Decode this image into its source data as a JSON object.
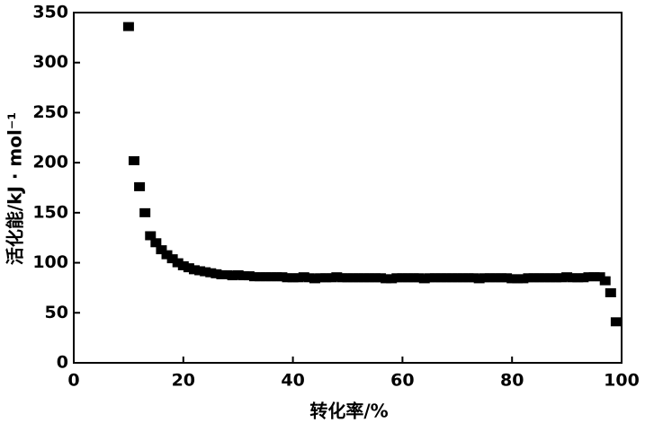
{
  "chart_data": {
    "type": "scatter",
    "x_label": "转化率/%",
    "y_label": "活化能/kJ · mol⁻¹",
    "x": [
      10,
      11,
      12,
      13,
      14,
      15,
      16,
      17,
      18,
      19,
      20,
      21,
      22,
      23,
      24,
      25,
      26,
      27,
      28,
      29,
      30,
      31,
      32,
      33,
      34,
      35,
      36,
      37,
      38,
      39,
      40,
      41,
      42,
      43,
      44,
      45,
      46,
      47,
      48,
      49,
      50,
      51,
      52,
      53,
      54,
      55,
      56,
      57,
      58,
      59,
      60,
      61,
      62,
      63,
      64,
      65,
      66,
      67,
      68,
      69,
      70,
      71,
      72,
      73,
      74,
      75,
      76,
      77,
      78,
      79,
      80,
      81,
      82,
      83,
      84,
      85,
      86,
      87,
      88,
      89,
      90,
      91,
      92,
      93,
      94,
      95,
      96,
      97,
      98,
      99
    ],
    "values": [
      336,
      202,
      176,
      150,
      127,
      120,
      113,
      108,
      104,
      100,
      97,
      95,
      93,
      92,
      91,
      90,
      89,
      88,
      88,
      87,
      88,
      87,
      87,
      86,
      86,
      86,
      86,
      86,
      86,
      85,
      85,
      85,
      86,
      85,
      84,
      85,
      85,
      85,
      86,
      85,
      85,
      85,
      85,
      85,
      85,
      85,
      85,
      84,
      84,
      85,
      85,
      85,
      85,
      85,
      84,
      85,
      85,
      85,
      85,
      85,
      85,
      85,
      85,
      85,
      84,
      85,
      85,
      85,
      85,
      85,
      84,
      84,
      84,
      85,
      85,
      85,
      85,
      85,
      85,
      85,
      86,
      85,
      85,
      85,
      86,
      86,
      86,
      82,
      70,
      41
    ],
    "color": "#000000",
    "xlim": [
      0,
      100
    ],
    "xticks": [
      0,
      20,
      40,
      60,
      80,
      100
    ],
    "ylim": [
      0,
      350
    ],
    "yticks": [
      0,
      50,
      100,
      150,
      200,
      250,
      300,
      350
    ],
    "grid": false
  }
}
